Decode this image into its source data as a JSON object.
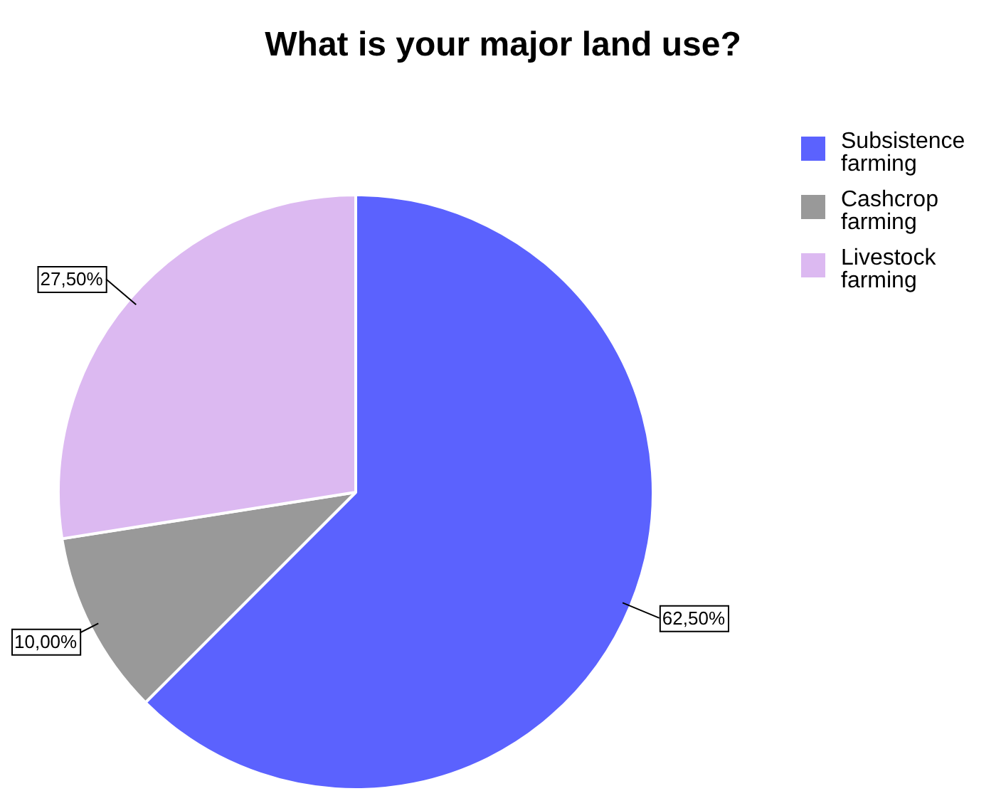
{
  "chart_data": {
    "type": "pie",
    "title": "What is your major land use?",
    "categories": [
      "Subsistence farming",
      "Cashcrop farming",
      "Livestock farming"
    ],
    "values": [
      62.5,
      10,
      27.5
    ],
    "colors": [
      "#5b62fe",
      "#999999",
      "#dcb9f1"
    ],
    "value_labels": [
      "62,50%",
      "10,00%",
      "27,50%"
    ],
    "legend": "top right"
  }
}
